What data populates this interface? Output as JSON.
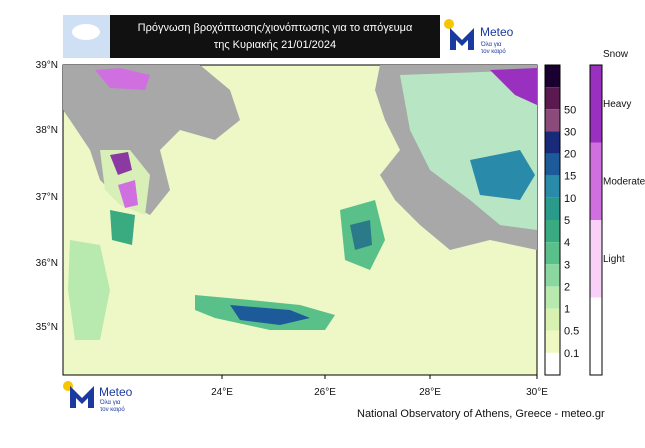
{
  "header": {
    "title_line1": "Πρόγνωση βροχόπτωσης/χιονόπτωσης για το απόγευμα",
    "title_line2": "της Κυριακής 21/01/2024"
  },
  "logo": {
    "name": "Meteo",
    "tagline_line1": "Όλα για",
    "tagline_line2": "τον καιρό"
  },
  "map": {
    "lat_labels": [
      "39°N",
      "38°N",
      "37°N",
      "36°N",
      "35°N"
    ],
    "lon_labels": [
      "24°E",
      "26°E",
      "28°E",
      "30°E"
    ]
  },
  "colorbar": {
    "labels": [
      "50",
      "30",
      "20",
      "15",
      "10",
      "5",
      "4",
      "3",
      "2",
      "1",
      "0.5",
      "0.1"
    ]
  },
  "snow_legend": {
    "title": "Snow",
    "levels": [
      "Heavy",
      "Moderate",
      "Light"
    ]
  },
  "credit": "National Observatory of Athens, Greece - meteo.gr"
}
